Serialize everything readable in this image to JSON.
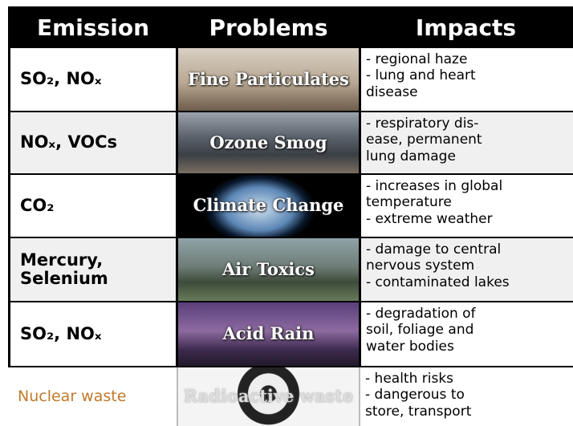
{
  "table": {
    "header": [
      "Emission",
      "Problems",
      "Impacts"
    ],
    "rows": [
      {
        "emission": "SO₂, NOₓ",
        "problem": "Fine Particulates",
        "impacts": [
          "- regional haze",
          "- lung and heart",
          "disease"
        ]
      },
      {
        "emission": "NOₓ, VOCs",
        "problem": "Ozone Smog",
        "impacts": [
          "- respiratory dis-",
          "ease, permanent",
          "lung damage"
        ]
      },
      {
        "emission": "CO₂",
        "problem": "Climate Change",
        "impacts": [
          "- increases in global",
          "temperature",
          "- extreme weather"
        ]
      },
      {
        "emission": "Mercury, Selenium",
        "problem": "Air Toxics",
        "impacts": [
          "- damage to central",
          "nervous system",
          "- contaminated lakes"
        ]
      },
      {
        "emission": "SO₂, NOₓ",
        "problem": "Acid Rain",
        "impacts": [
          "- degradation of",
          "soil, foliage and",
          "water bodies"
        ]
      },
      {
        "emission": "Nuclear waste",
        "problem": "Radioactive waste",
        "impacts": [
          "- health risks",
          "- dangerous to",
          "store, transport"
        ]
      }
    ]
  }
}
